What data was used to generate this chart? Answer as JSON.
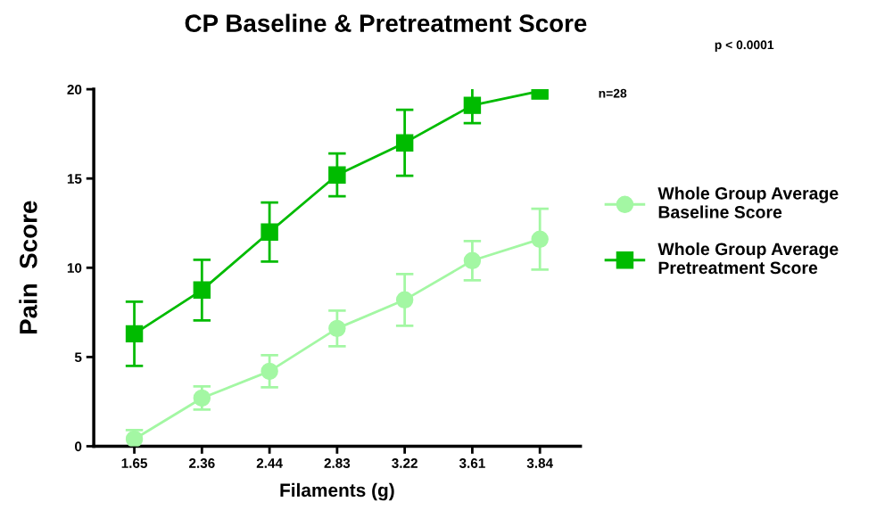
{
  "chart_data": {
    "type": "line",
    "title": "CP Baseline & Pretreatment Score",
    "xlabel": "Filaments (g)",
    "ylabel": "Pain  Score",
    "categories": [
      "1.65",
      "2.36",
      "2.44",
      "2.83",
      "3.22",
      "3.61",
      "3.84"
    ],
    "series": [
      {
        "name": "Whole Group Average\nBaseline Score",
        "color": "#a3f7a3",
        "marker": "circle",
        "values": [
          0.4,
          2.7,
          4.2,
          6.6,
          8.2,
          10.4,
          11.6
        ],
        "errors": [
          0.5,
          0.65,
          0.9,
          1.0,
          1.45,
          1.1,
          1.7
        ]
      },
      {
        "name": "Whole Group Average\nPretreatment Score",
        "color": "#00bb00",
        "marker": "square",
        "values": [
          6.3,
          8.75,
          12.0,
          15.2,
          17.0,
          19.1,
          19.9
        ],
        "errors": [
          1.8,
          1.7,
          1.65,
          1.2,
          1.85,
          1.0,
          null
        ]
      }
    ],
    "ylim": [
      0,
      20
    ],
    "yticks": [
      0,
      5,
      10,
      15,
      20
    ],
    "grid": false,
    "legend": "right",
    "annotations": [
      "p < 0.0001",
      "n=28"
    ]
  }
}
